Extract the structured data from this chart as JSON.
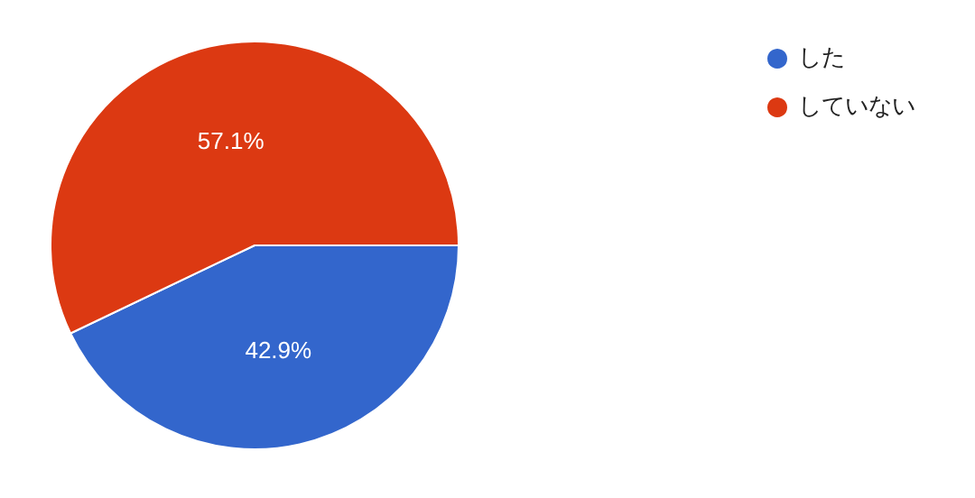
{
  "chart_data": {
    "type": "pie",
    "categories": [
      "した",
      "していない"
    ],
    "values": [
      42.9,
      57.1
    ],
    "value_labels": [
      "42.9%",
      "57.1%"
    ],
    "colors": [
      "#3366cc",
      "#dc3912"
    ],
    "legend": "top right"
  }
}
